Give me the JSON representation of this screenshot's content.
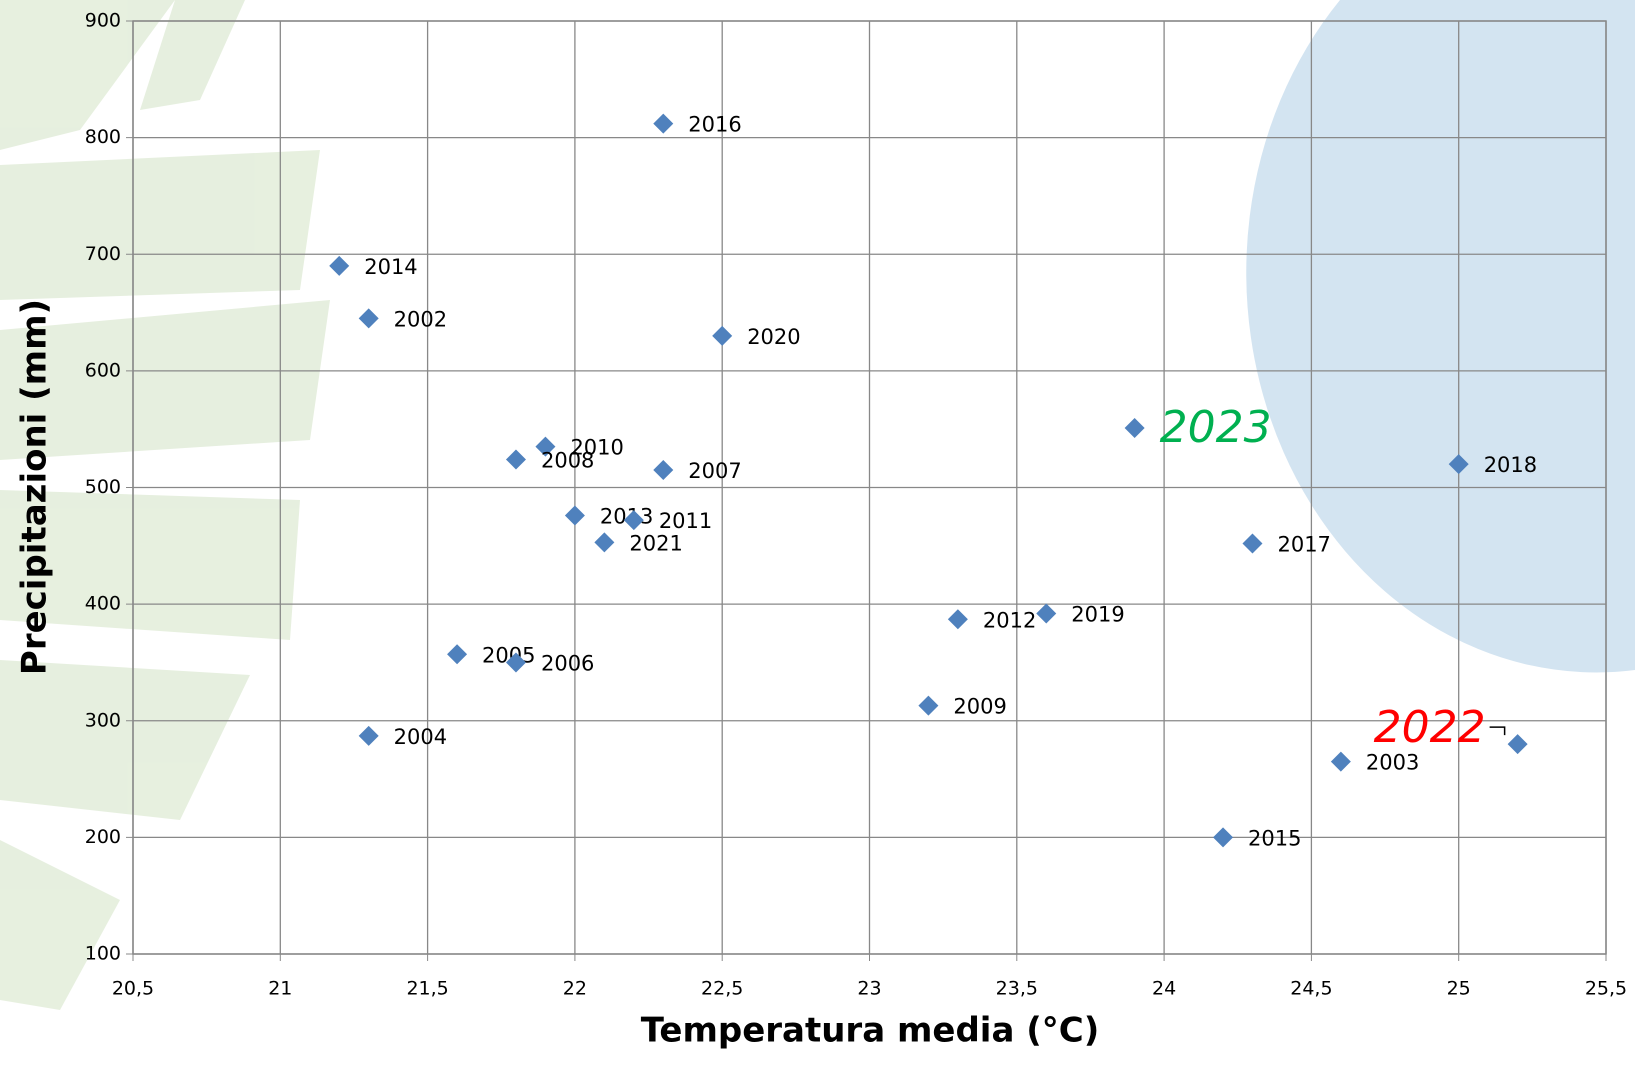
{
  "chart_data": {
    "type": "scatter",
    "x_label": "Temperatura media (°C)",
    "y_label": "Precipitazioni (mm)",
    "xlim": [
      20.5,
      25.5
    ],
    "ylim": [
      100,
      900
    ],
    "xticks": [
      {
        "value": 20.5,
        "label": "20,5"
      },
      21,
      {
        "value": 21.5,
        "label": "21,5"
      },
      22,
      {
        "value": 22.5,
        "label": "22,5"
      },
      23,
      {
        "value": 23.5,
        "label": "23,5"
      },
      24,
      {
        "value": 24.5,
        "label": "24,5"
      },
      25,
      {
        "value": 25.5,
        "label": "25,5"
      }
    ],
    "yticks": [
      100,
      200,
      300,
      400,
      500,
      600,
      700,
      800,
      900
    ],
    "grid": true,
    "series": [
      {
        "color": "#4f81bd",
        "labels": [
          "2016",
          "2014",
          "2002",
          "2020",
          "2023",
          "2018",
          "2010",
          "2008",
          "2007",
          "2013",
          "2011",
          "2021",
          "2017",
          "2012",
          "2019",
          "2005",
          "2006",
          "2009",
          "2004",
          "2022",
          "2003",
          "2015"
        ],
        "x": [
          22.3,
          21.2,
          21.3,
          22.5,
          23.9,
          25.0,
          21.9,
          21.8,
          22.3,
          22.0,
          22.2,
          22.1,
          24.3,
          23.3,
          23.6,
          21.6,
          21.8,
          23.2,
          21.3,
          25.2,
          24.6,
          24.2
        ],
        "values": [
          812,
          690,
          645,
          630,
          551,
          520,
          535,
          524,
          515,
          476,
          472,
          453,
          452,
          387,
          392,
          357,
          350,
          313,
          287,
          280,
          265,
          200
        ]
      }
    ],
    "highlights": [
      {
        "label": "2023",
        "color": "#00b050"
      },
      {
        "label": "2022",
        "color": "#ff0000"
      }
    ]
  }
}
